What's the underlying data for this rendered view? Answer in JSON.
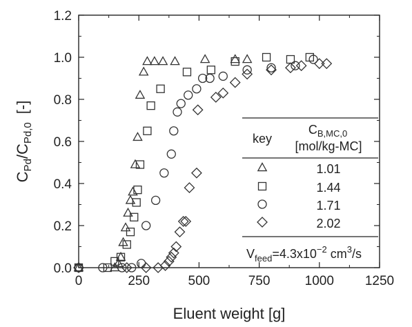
{
  "chart_data": {
    "type": "scatter",
    "title": "",
    "xlabel": "Eluent weight [g]",
    "ylabel_base": "C",
    "ylabel_sub1": "Pd",
    "ylabel_mid": "/C",
    "ylabel_sub2": "Pd,0",
    "ylabel_unit": "[-]",
    "xlim": [
      0,
      1250
    ],
    "ylim": [
      0.0,
      1.2
    ],
    "xticks": [
      "0",
      "250",
      "500",
      "750",
      "1000",
      "1250"
    ],
    "yticks": [
      "0.0",
      "0.2",
      "0.4",
      "0.6",
      "0.8",
      "1.0",
      "1.2"
    ],
    "grid": false,
    "legend": {
      "position": "right",
      "header_key": "key",
      "header_col_base": "C",
      "header_col_sub": "B,MC,0",
      "header_col_unit": "[mol/kg-MC]",
      "footer_base": "V",
      "footer_sub": "feed",
      "footer_eq": "=4.3x10",
      "footer_exp": "−2",
      "footer_unit": " cm",
      "footer_unit_exp": "3",
      "footer_unit_end": "/s"
    },
    "series": [
      {
        "name": "1.01",
        "marker": "triangle",
        "points": [
          [
            0,
            0.0
          ],
          [
            150,
            0.0
          ],
          [
            165,
            0.02
          ],
          [
            175,
            0.05
          ],
          [
            185,
            0.12
          ],
          [
            195,
            0.19
          ],
          [
            205,
            0.26
          ],
          [
            215,
            0.32
          ],
          [
            225,
            0.36
          ],
          [
            235,
            0.49
          ],
          [
            245,
            0.62
          ],
          [
            255,
            0.82
          ],
          [
            270,
            0.93
          ],
          [
            285,
            0.98
          ],
          [
            315,
            0.98
          ],
          [
            350,
            0.98
          ],
          [
            400,
            0.98
          ],
          [
            525,
            0.99
          ],
          [
            650,
            0.99
          ],
          [
            700,
            0.99
          ]
        ]
      },
      {
        "name": "1.44",
        "marker": "square",
        "points": [
          [
            0,
            0.0
          ],
          [
            120,
            0.0
          ],
          [
            150,
            0.03
          ],
          [
            175,
            0.05
          ],
          [
            200,
            0.11
          ],
          [
            215,
            0.17
          ],
          [
            230,
            0.24
          ],
          [
            240,
            0.31
          ],
          [
            245,
            0.37
          ],
          [
            255,
            0.49
          ],
          [
            285,
            0.65
          ],
          [
            300,
            0.77
          ],
          [
            340,
            0.85
          ],
          [
            450,
            0.93
          ],
          [
            550,
            0.94
          ],
          [
            650,
            0.98
          ],
          [
            780,
            1.0
          ],
          [
            880,
            0.99
          ],
          [
            960,
            1.0
          ]
        ]
      },
      {
        "name": "1.71",
        "marker": "circle",
        "points": [
          [
            0,
            0.0
          ],
          [
            100,
            0.0
          ],
          [
            180,
            0.0
          ],
          [
            220,
            0.0
          ],
          [
            260,
            0.02
          ],
          [
            280,
            0.2
          ],
          [
            320,
            0.32
          ],
          [
            355,
            0.45
          ],
          [
            385,
            0.54
          ],
          [
            395,
            0.65
          ],
          [
            410,
            0.74
          ],
          [
            425,
            0.78
          ],
          [
            455,
            0.82
          ],
          [
            490,
            0.85
          ],
          [
            515,
            0.9
          ],
          [
            545,
            0.9
          ],
          [
            600,
            0.91
          ],
          [
            700,
            0.94
          ],
          [
            800,
            0.95
          ],
          [
            900,
            0.96
          ],
          [
            975,
            0.99
          ]
        ]
      },
      {
        "name": "2.02",
        "marker": "diamond",
        "points": [
          [
            0,
            0.0
          ],
          [
            200,
            0.0
          ],
          [
            280,
            0.0
          ],
          [
            330,
            0.0
          ],
          [
            360,
            0.01
          ],
          [
            375,
            0.03
          ],
          [
            385,
            0.05
          ],
          [
            395,
            0.07
          ],
          [
            405,
            0.1
          ],
          [
            420,
            0.17
          ],
          [
            435,
            0.22
          ],
          [
            445,
            0.22
          ],
          [
            460,
            0.38
          ],
          [
            490,
            0.45
          ],
          [
            495,
            0.75
          ],
          [
            570,
            0.81
          ],
          [
            600,
            0.83
          ],
          [
            650,
            0.88
          ],
          [
            700,
            0.92
          ],
          [
            800,
            0.94
          ],
          [
            880,
            0.95
          ],
          [
            925,
            0.96
          ],
          [
            1000,
            0.97
          ],
          [
            1030,
            0.97
          ]
        ]
      }
    ]
  }
}
